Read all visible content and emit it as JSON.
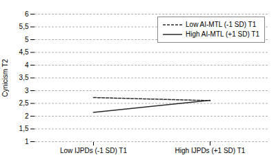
{
  "chart_data": {
    "type": "line",
    "categories": [
      "Low IJPDs (-1 SD) T1",
      "High IJPDs (+1 SD) T1"
    ],
    "series": [
      {
        "name": "Low AI-MTL (-1 SD) T1",
        "color": "#2a2a2a",
        "line_style": "dashed",
        "values": [
          2.73,
          2.61
        ]
      },
      {
        "name": "High AI-MTL (+1 SD) T1",
        "color": "#2a2a2a",
        "line_style": "solid",
        "values": [
          2.15,
          2.62
        ]
      }
    ],
    "ylabel": "Cynicism T2",
    "ylim": [
      1,
      6
    ],
    "yticks": [
      1,
      {
        "value": 1.5,
        "label": "1,5"
      },
      2,
      {
        "value": 2.5,
        "label": "2,5"
      },
      3,
      {
        "value": 3.5,
        "label": "3,5"
      },
      4,
      {
        "value": 4.5,
        "label": "4,5"
      },
      5,
      {
        "value": 5.5,
        "label": "5,5"
      },
      6
    ],
    "grid": true,
    "legend": "upper right"
  }
}
